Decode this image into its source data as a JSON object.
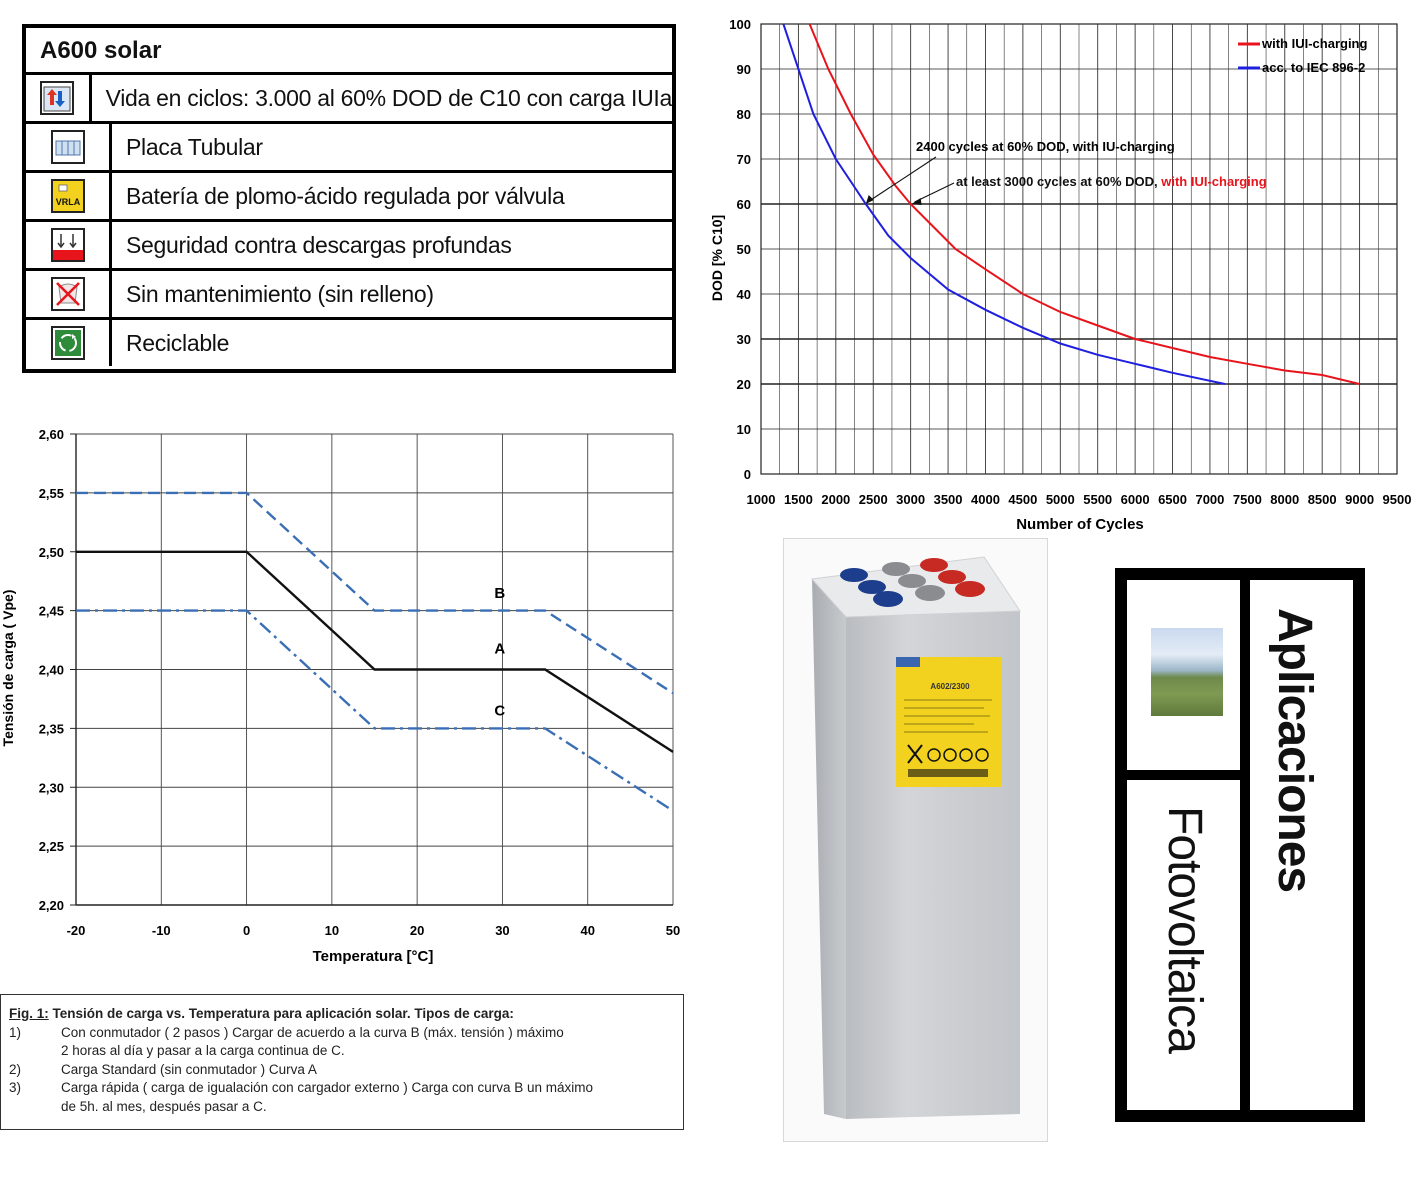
{
  "feature_table": {
    "title": "A600 solar",
    "rows": [
      {
        "icon": "cycle-life-icon",
        "text": "Vida en ciclos: 3.000 al 60% DOD de C10 con carga IUIa"
      },
      {
        "icon": "tubular-plate-icon",
        "text": "Placa Tubular"
      },
      {
        "icon": "vrla-icon",
        "icon_label": "VRLA",
        "text": "Batería de plomo-ácido regulada por válvula"
      },
      {
        "icon": "deep-discharge-icon",
        "text": "Seguridad contra descargas profundas"
      },
      {
        "icon": "no-maintenance-icon",
        "text": "Sin mantenimiento (sin relleno)"
      },
      {
        "icon": "recycle-icon",
        "text": "Reciclable"
      }
    ]
  },
  "colors": {
    "red_series": "#e8141b",
    "blue_series": "#1f1fe0",
    "voltage_dash": "#3a6fb5",
    "vrla_yellow": "#f2d21f"
  },
  "chart_data": [
    {
      "type": "line",
      "xlabel": "Number of Cycles",
      "ylabel": "DOD [% C10]",
      "xlim": [
        1000,
        9500
      ],
      "ylim": [
        0,
        100
      ],
      "x_ticks": [
        "1000",
        "1500",
        "2000",
        "2500",
        "3000",
        "3500",
        "4000",
        "4500",
        "5000",
        "5500",
        "6000",
        "6500",
        "7000",
        "7500",
        "8000",
        "8500",
        "9000",
        "9500"
      ],
      "y_ticks": [
        "0",
        "10",
        "20",
        "30",
        "40",
        "50",
        "60",
        "70",
        "80",
        "90",
        "100"
      ],
      "grid": true,
      "legend_position": "top-right",
      "series": [
        {
          "name": "with IUI-charging",
          "color": "#e8141b",
          "x": [
            1650,
            1900,
            2200,
            2500,
            2800,
            3000,
            3300,
            3600,
            4000,
            4500,
            5000,
            5500,
            6000,
            6500,
            7000,
            7500,
            8000,
            8500,
            9000
          ],
          "y": [
            100,
            90,
            80,
            71,
            64,
            60,
            55,
            50,
            45.5,
            40,
            36,
            33,
            30,
            28,
            26,
            24.5,
            23,
            22,
            20
          ]
        },
        {
          "name": "acc. to IEC 896-2",
          "color": "#1f1fe0",
          "x": [
            1300,
            1500,
            1700,
            2000,
            2200,
            2400,
            2700,
            3000,
            3500,
            4000,
            4500,
            5000,
            5500,
            6000,
            6500,
            7200
          ],
          "y": [
            100,
            90,
            80,
            70,
            65,
            60,
            53,
            48,
            41,
            36.5,
            32.5,
            29,
            26.5,
            24.5,
            22.5,
            20
          ]
        }
      ],
      "annotations": [
        {
          "text": "2400 cycles at 60% DOD, with IU-charging",
          "x": 2400,
          "y": 60
        },
        {
          "text_main": "at least 3000 cycles at 60% DOD, ",
          "text_red": "with IUI-charging",
          "x": 3000,
          "y": 60
        }
      ]
    },
    {
      "type": "line",
      "xlabel": "Temperatura [°C]",
      "ylabel": "Tensión de carga ( Vpe)",
      "xlim": [
        -20,
        50
      ],
      "ylim": [
        2.2,
        2.6
      ],
      "x_ticks": [
        "-20",
        "-10",
        "0",
        "10",
        "20",
        "30",
        "40",
        "50"
      ],
      "y_ticks": [
        "2,20",
        "2,25",
        "2,30",
        "2,35",
        "2,40",
        "2,45",
        "2,50",
        "2,55",
        "2,60"
      ],
      "grid": true,
      "series": [
        {
          "name": "B",
          "style": "dashed",
          "x": [
            -20,
            0,
            15,
            35,
            50
          ],
          "y": [
            2.55,
            2.55,
            2.45,
            2.45,
            2.38
          ]
        },
        {
          "name": "A",
          "style": "solid",
          "x": [
            -20,
            0,
            15,
            35,
            50
          ],
          "y": [
            2.5,
            2.5,
            2.4,
            2.4,
            2.33
          ]
        },
        {
          "name": "C",
          "style": "dashdot",
          "x": [
            -20,
            0,
            15,
            35,
            50
          ],
          "y": [
            2.45,
            2.45,
            2.35,
            2.35,
            2.28
          ]
        }
      ],
      "curve_labels": [
        {
          "text": "B",
          "x": 25,
          "y": 2.465
        },
        {
          "text": "A",
          "x": 25,
          "y": 2.418
        },
        {
          "text": "C",
          "x": 25,
          "y": 2.365
        }
      ]
    }
  ],
  "caption": {
    "fig_label": "Fig. 1:",
    "heading": " Tensión de carga vs. Temperatura para aplicación solar. Tipos de carga:",
    "items": [
      {
        "num": "1)",
        "lines": [
          "Con conmutador ( 2 pasos ) Cargar  de acuerdo a la curva B (máx. tensión  ) máximo",
          "2 horas al día y pasar a la carga continua de C."
        ]
      },
      {
        "num": "2)",
        "lines": [
          "Carga Standard (sin conmutador ) Curva A"
        ]
      },
      {
        "num": "3)",
        "lines": [
          "Carga rápida ( carga de igualación con cargador externo ) Carga con curva B un máximo",
          "de 5h. al mes, después  pasar a C."
        ]
      }
    ]
  },
  "battery_label": {
    "model": "A602/2300"
  },
  "applications": {
    "title": "Aplicaciones",
    "subtitle": "Fotovoltaica"
  }
}
